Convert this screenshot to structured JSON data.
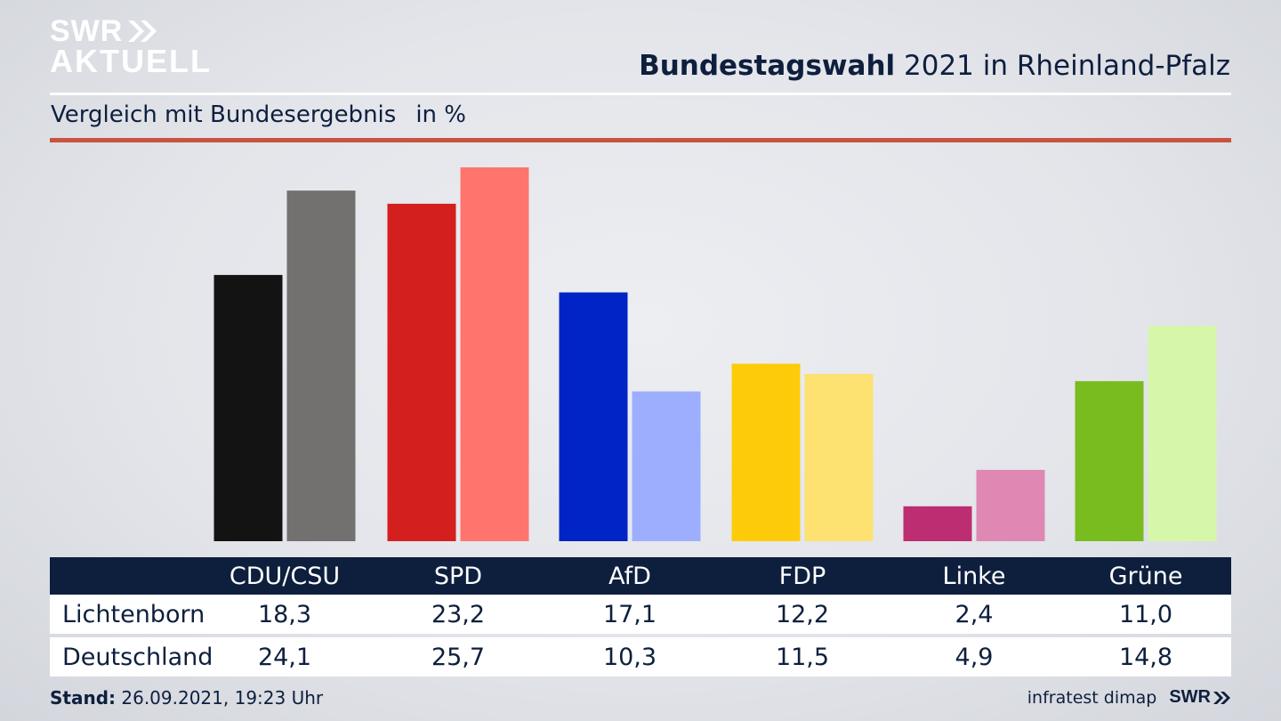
{
  "brand": {
    "line1": "SWR",
    "line2": "AKTUELL",
    "footer_logo": "SWR",
    "logo_icon": "double-chevron-icon"
  },
  "header": {
    "title_bold": "Bundestagswahl",
    "title_rest": " 2021 in Rheinland-Pfalz"
  },
  "subtitle": {
    "text": "Vergleich mit Bundesergebnis",
    "unit": "in %"
  },
  "footer": {
    "stand_label": "Stand:",
    "stand_value": " 26.09.2021, 19:23 Uhr",
    "source": "infratest dimap"
  },
  "chart_data": {
    "type": "bar",
    "title": "Bundestagswahl 2021 in Rheinland-Pfalz",
    "subtitle": "Vergleich mit Bundesergebnis in %",
    "categories": [
      "CDU/CSU",
      "SPD",
      "AfD",
      "FDP",
      "Linke",
      "Grüne"
    ],
    "series": [
      {
        "name": "Lichtenborn",
        "values": [
          18.3,
          23.2,
          17.1,
          12.2,
          2.4,
          11.0
        ],
        "labels": [
          "18,3",
          "23,2",
          "17,1",
          "12,2",
          "2,4",
          "11,0"
        ],
        "colors": [
          "#131313",
          "#d41f1f",
          "#0024c6",
          "#fecb0a",
          "#bd2d72",
          "#79bc1f"
        ]
      },
      {
        "name": "Deutschland",
        "values": [
          24.1,
          25.7,
          10.3,
          11.5,
          4.9,
          14.8
        ],
        "labels": [
          "24,1",
          "25,7",
          "10,3",
          "11,5",
          "4,9",
          "14,8"
        ],
        "colors": [
          "#72716f",
          "#ff756e",
          "#9eaeff",
          "#fde171",
          "#de88b3",
          "#d6f7aa"
        ]
      }
    ],
    "ylim": [
      0,
      25.7
    ],
    "grid": false,
    "xlabel": "",
    "ylabel": ""
  },
  "colors": {
    "navy": "#0e1f3e",
    "accent_red": "#c9533f"
  }
}
